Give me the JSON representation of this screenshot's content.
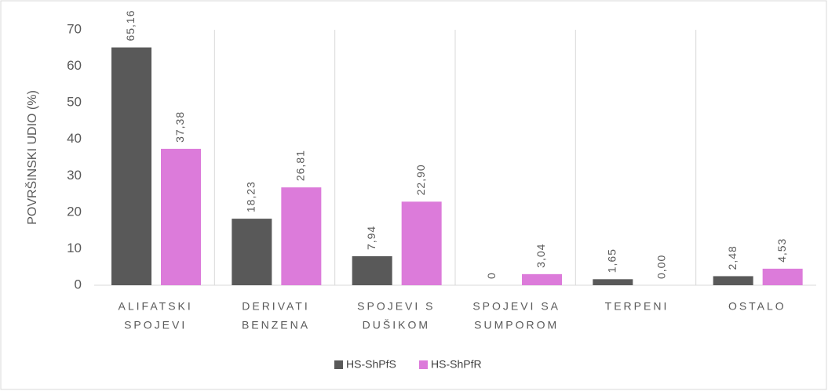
{
  "chart_data": {
    "type": "bar",
    "y_label": "POVRŠINSKI UDIO (%)",
    "categories": [
      [
        "ALIFATSKI",
        "SPOJEVI"
      ],
      [
        "DERIVATI",
        "BENZENA"
      ],
      [
        "SPOJEVI S",
        "DUŠIKOM"
      ],
      [
        "SPOJEVI SA",
        "SUMPOROM"
      ],
      [
        "TERPENI"
      ],
      [
        "OSTALO"
      ]
    ],
    "series": [
      {
        "name": "HS-ShPfS",
        "color": "#595959",
        "values": [
          65.16,
          18.23,
          7.94,
          0,
          1.65,
          2.48
        ],
        "value_labels": [
          "65,16",
          "18,23",
          "7,94",
          "0",
          "1,65",
          "2,48"
        ]
      },
      {
        "name": "HS-ShPfR",
        "color": "#dc7bda",
        "values": [
          37.38,
          26.81,
          22.9,
          3.04,
          0,
          4.53
        ],
        "value_labels": [
          "37,38",
          "26,81",
          "22,90",
          "3,04",
          "0,00",
          "4,53"
        ]
      }
    ],
    "ylim": [
      0,
      70
    ],
    "yticks": [
      0,
      10,
      20,
      30,
      40,
      50,
      60,
      70
    ],
    "grid": true,
    "legend": "bottom"
  }
}
